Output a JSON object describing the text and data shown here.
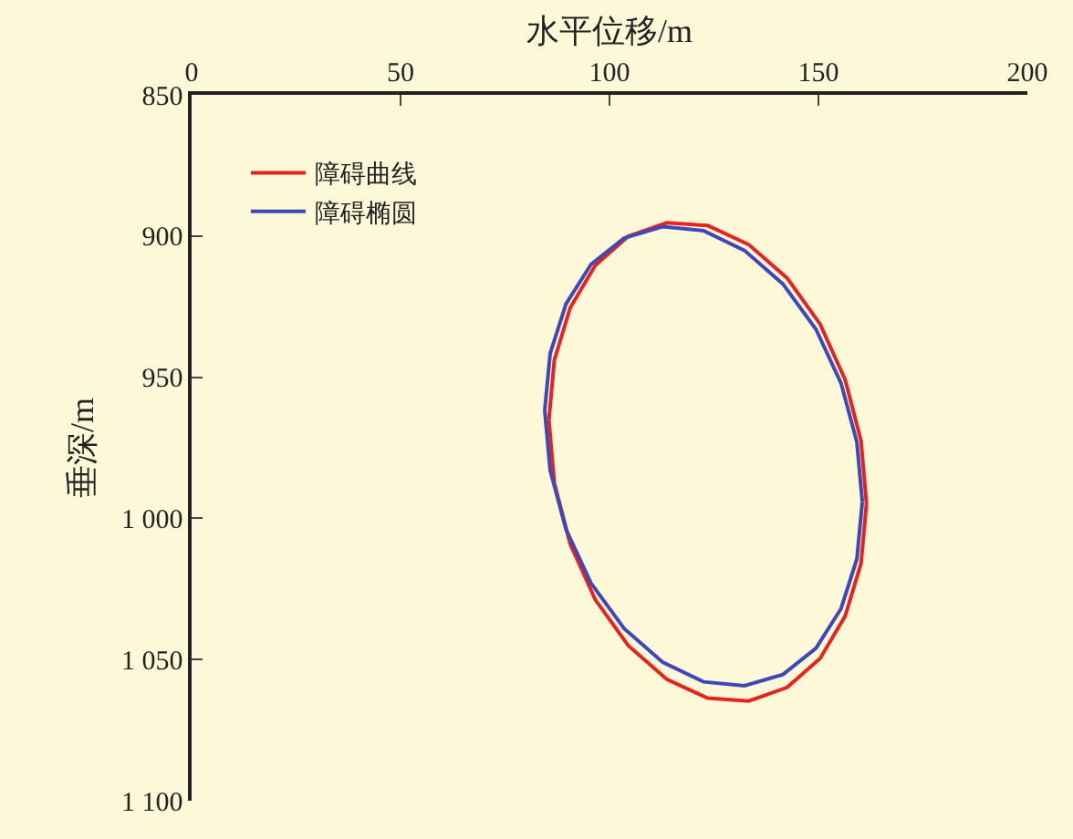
{
  "chart_data": {
    "type": "line",
    "xlabel": "水平位移/m",
    "ylabel": "垂深/m",
    "xlim": [
      0,
      200
    ],
    "xticks": [
      0,
      50,
      100,
      150,
      200
    ],
    "ylim": [
      1100,
      850
    ],
    "yticks": [
      850,
      900,
      950,
      {
        "value": 1000,
        "label": "1 000"
      },
      {
        "value": 1050,
        "label": "1 050"
      },
      {
        "value": 1100,
        "label": "1 100"
      }
    ],
    "grid": false,
    "legend": "top left",
    "marker": "none",
    "line_style": "solid",
    "series": [
      {
        "name": "障碍曲线",
        "color": "#e8231f",
        "x": [
          85.5,
          86.8,
          90.6,
          96.6,
          104.5,
          113.7,
          123.5,
          133.3,
          142.5,
          150.4,
          156.4,
          160.2,
          161.5,
          null,
          85.5,
          86.8,
          90.6,
          96.6,
          104.5,
          113.7,
          123.5,
          133.3,
          142.5,
          150.4,
          156.4,
          160.2,
          161.5
        ],
        "values": [
          965.2,
          944.0,
          925.4,
          910.4,
          900.1,
          895.3,
          896.3,
          903.0,
          914.9,
          931.2,
          950.9,
          972.6,
          994.8,
          null,
          965.2,
          987.4,
          1009.1,
          1028.8,
          1045.1,
          1057.0,
          1063.7,
          1064.7,
          1059.9,
          1049.6,
          1034.6,
          1016.0,
          994.8
        ]
      },
      {
        "name": "障碍椭圆",
        "color": "#3f48b8",
        "x": [
          84.5,
          85.8,
          89.6,
          95.6,
          103.5,
          112.7,
          122.5,
          132.3,
          141.5,
          149.4,
          155.4,
          159.2,
          160.5,
          null,
          84.5,
          85.8,
          89.6,
          95.6,
          103.5,
          112.7,
          122.5,
          132.3,
          141.5,
          149.4,
          155.4,
          159.2,
          160.5
        ],
        "values": [
          961.8,
          941.6,
          924.0,
          910.0,
          900.7,
          896.7,
          898.1,
          905.1,
          917.0,
          933.0,
          952.1,
          973.0,
          994.2,
          null,
          961.8,
          983.0,
          1003.9,
          1023.0,
          1039.0,
          1050.9,
          1057.9,
          1059.3,
          1055.3,
          1046.0,
          1032.0,
          1014.4,
          994.2
        ]
      }
    ]
  }
}
